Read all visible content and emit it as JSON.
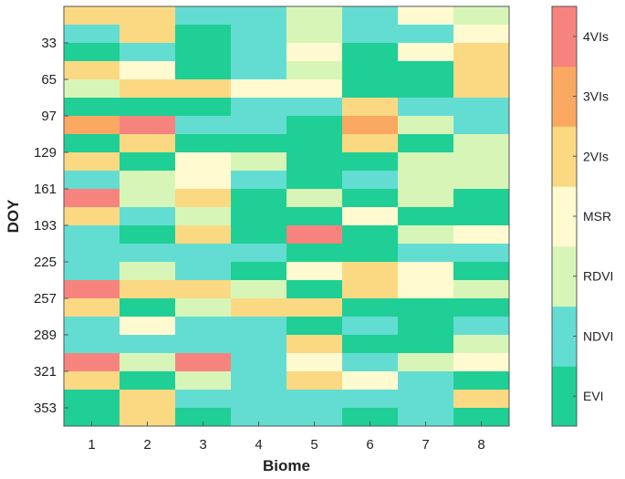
{
  "chart_data": {
    "type": "heatmap",
    "title": "",
    "xlabel": "Biome",
    "ylabel": "DOY",
    "x_categories": [
      "1",
      "2",
      "3",
      "4",
      "5",
      "6",
      "7",
      "8"
    ],
    "y_ticks": [
      "33",
      "65",
      "97",
      "129",
      "161",
      "193",
      "225",
      "257",
      "289",
      "321",
      "353"
    ],
    "color_categories": [
      {
        "label": "EVI",
        "color": "#1fcf95"
      },
      {
        "label": "NDVI",
        "color": "#63ddd2"
      },
      {
        "label": "RDVI",
        "color": "#d8f5b8"
      },
      {
        "label": "MSR",
        "color": "#fffad0"
      },
      {
        "label": "2VIs",
        "color": "#fbd983"
      },
      {
        "label": "3VIs",
        "color": "#fba862"
      },
      {
        "label": "4VIs",
        "color": "#f7837f"
      }
    ],
    "grid": [
      [
        4,
        4,
        1,
        1,
        2,
        1,
        3,
        2
      ],
      [
        1,
        4,
        0,
        1,
        2,
        1,
        1,
        3
      ],
      [
        0,
        1,
        0,
        1,
        3,
        0,
        3,
        4
      ],
      [
        4,
        3,
        0,
        1,
        2,
        0,
        0,
        4
      ],
      [
        2,
        4,
        4,
        3,
        3,
        0,
        0,
        4
      ],
      [
        0,
        0,
        0,
        1,
        1,
        4,
        1,
        1
      ],
      [
        5,
        6,
        1,
        1,
        0,
        5,
        2,
        1
      ],
      [
        0,
        4,
        0,
        0,
        0,
        4,
        0,
        2
      ],
      [
        4,
        0,
        3,
        2,
        0,
        0,
        2,
        2
      ],
      [
        1,
        2,
        3,
        1,
        0,
        1,
        2,
        2
      ],
      [
        6,
        2,
        4,
        0,
        2,
        0,
        2,
        0
      ],
      [
        4,
        1,
        2,
        0,
        0,
        3,
        0,
        0
      ],
      [
        1,
        0,
        4,
        0,
        6,
        0,
        2,
        3
      ],
      [
        1,
        1,
        1,
        1,
        0,
        0,
        1,
        1
      ],
      [
        1,
        2,
        1,
        0,
        3,
        4,
        3,
        0
      ],
      [
        6,
        4,
        4,
        2,
        0,
        4,
        3,
        2
      ],
      [
        4,
        0,
        2,
        4,
        4,
        0,
        0,
        0
      ],
      [
        1,
        3,
        1,
        1,
        0,
        1,
        0,
        1
      ],
      [
        1,
        1,
        1,
        1,
        4,
        0,
        0,
        2
      ],
      [
        6,
        2,
        6,
        1,
        3,
        1,
        2,
        3
      ],
      [
        4,
        0,
        2,
        1,
        4,
        3,
        1,
        0
      ],
      [
        0,
        4,
        1,
        1,
        1,
        1,
        1,
        4
      ],
      [
        0,
        4,
        0,
        1,
        1,
        0,
        1,
        0
      ]
    ]
  }
}
